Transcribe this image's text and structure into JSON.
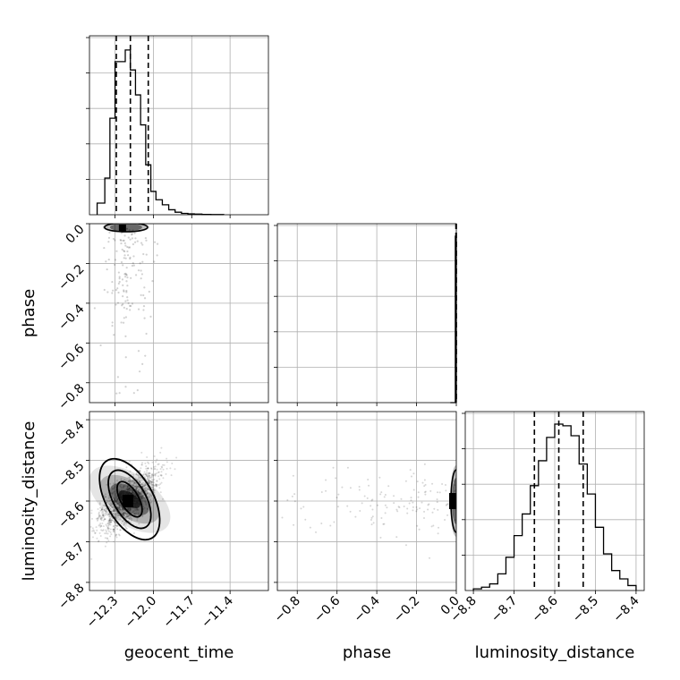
{
  "chart_data": {
    "type": "corner",
    "parameters": [
      "geocent_time",
      "phase",
      "luminosity_distance"
    ],
    "axis_labels": {
      "geocent_time": "geocent_time",
      "phase": "phase",
      "luminosity_distance": "luminosity_distance"
    },
    "ranges": {
      "geocent_time": [
        -12.5,
        -11.1
      ],
      "phase": [
        -0.9,
        0.0
      ],
      "luminosity_distance": [
        -8.82,
        -8.38
      ]
    },
    "ticks": {
      "geocent_time": [
        {
          "v": -12.3,
          "label": "−12.3"
        },
        {
          "v": -12.0,
          "label": "−12.0"
        },
        {
          "v": -11.7,
          "label": "−11.7"
        },
        {
          "v": -11.4,
          "label": "−11.4"
        }
      ],
      "phase": [
        {
          "v": -0.8,
          "label": "−0.8"
        },
        {
          "v": -0.6,
          "label": "−0.6"
        },
        {
          "v": -0.4,
          "label": "−0.4"
        },
        {
          "v": -0.2,
          "label": "−0.2"
        },
        {
          "v": 0.0,
          "label": "0.0"
        }
      ],
      "luminosity_distance": [
        {
          "v": -8.8,
          "label": "−8.8"
        },
        {
          "v": -8.7,
          "label": "−8.7"
        },
        {
          "v": -8.6,
          "label": "−8.6"
        },
        {
          "v": -8.5,
          "label": "−8.5"
        },
        {
          "v": -8.4,
          "label": "−8.4"
        }
      ]
    },
    "marginals": {
      "geocent_time": {
        "bin_edges": [
          -12.44,
          -12.38,
          -12.34,
          -12.3,
          -12.26,
          -12.22,
          -12.18,
          -12.14,
          -12.1,
          -12.06,
          -12.02,
          -11.98,
          -11.93,
          -11.88,
          -11.83,
          -11.78,
          -11.73,
          -11.68,
          -11.62,
          -11.55,
          -11.45
        ],
        "counts": [
          0.07,
          0.22,
          0.58,
          0.92,
          0.92,
          0.99,
          0.87,
          0.72,
          0.54,
          0.3,
          0.14,
          0.09,
          0.06,
          0.03,
          0.015,
          0.008,
          0.005,
          0.004,
          0.002,
          0.001
        ],
        "quantiles": [
          -12.29,
          -12.18,
          -12.04
        ]
      },
      "phase": {
        "bin_edges": [
          -0.03,
          -0.005,
          0.0
        ],
        "counts": [
          0.0,
          1.0
        ],
        "quantiles": [
          -0.002,
          -0.001,
          0.0
        ]
      },
      "luminosity_distance": {
        "bin_edges": [
          -8.8,
          -8.78,
          -8.76,
          -8.74,
          -8.72,
          -8.7,
          -8.68,
          -8.66,
          -8.64,
          -8.62,
          -8.6,
          -8.58,
          -8.56,
          -8.54,
          -8.52,
          -8.5,
          -8.48,
          -8.46,
          -8.44,
          -8.42,
          -8.4
        ],
        "counts": [
          0.01,
          0.02,
          0.04,
          0.1,
          0.2,
          0.33,
          0.46,
          0.63,
          0.78,
          0.92,
          1.0,
          0.99,
          0.93,
          0.76,
          0.58,
          0.38,
          0.22,
          0.12,
          0.07,
          0.03
        ],
        "quantiles": [
          -8.65,
          -8.59,
          -8.53
        ]
      }
    },
    "joint": [
      {
        "x": "geocent_time",
        "y": "phase",
        "center": [
          -12.2,
          -0.01
        ],
        "core_density_level": 0.9
      },
      {
        "x": "geocent_time",
        "y": "luminosity_distance",
        "center": [
          -12.2,
          -8.6
        ],
        "core_density_level": 0.85
      },
      {
        "x": "phase",
        "y": "luminosity_distance",
        "center": [
          -0.005,
          -8.6
        ],
        "core_density_level": 0.8
      }
    ],
    "grid": true
  }
}
